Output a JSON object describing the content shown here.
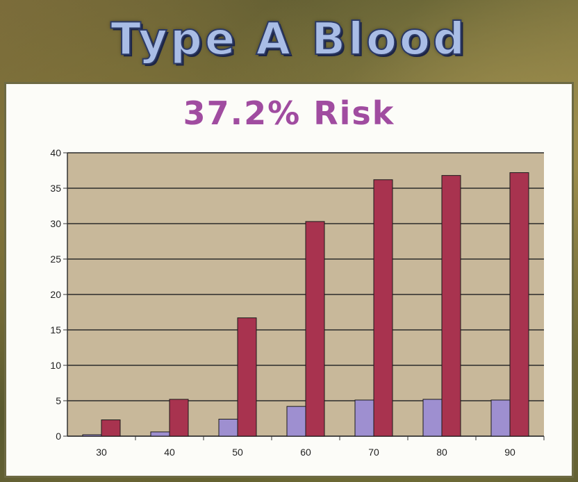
{
  "header": {
    "title": "Type A Blood"
  },
  "chart_data": {
    "type": "bar",
    "title": "37.2% Risk",
    "categories": [
      "30",
      "40",
      "50",
      "60",
      "70",
      "80",
      "90"
    ],
    "series": [
      {
        "values": [
          0.2,
          0.6,
          2.4,
          4.2,
          5.1,
          5.2,
          5.1
        ]
      },
      {
        "values": [
          2.3,
          5.2,
          16.7,
          30.3,
          36.2,
          36.8,
          37.2
        ]
      }
    ],
    "ylim": [
      0,
      40
    ],
    "yticks": [
      0,
      5,
      10,
      15,
      20,
      25,
      30,
      35,
      40
    ],
    "grid": true,
    "colors": {
      "series": [
        "#9e8fd0",
        "#a8334f"
      ],
      "plot_bg": "#c8b89a",
      "grid": "#2a2a2a"
    }
  }
}
